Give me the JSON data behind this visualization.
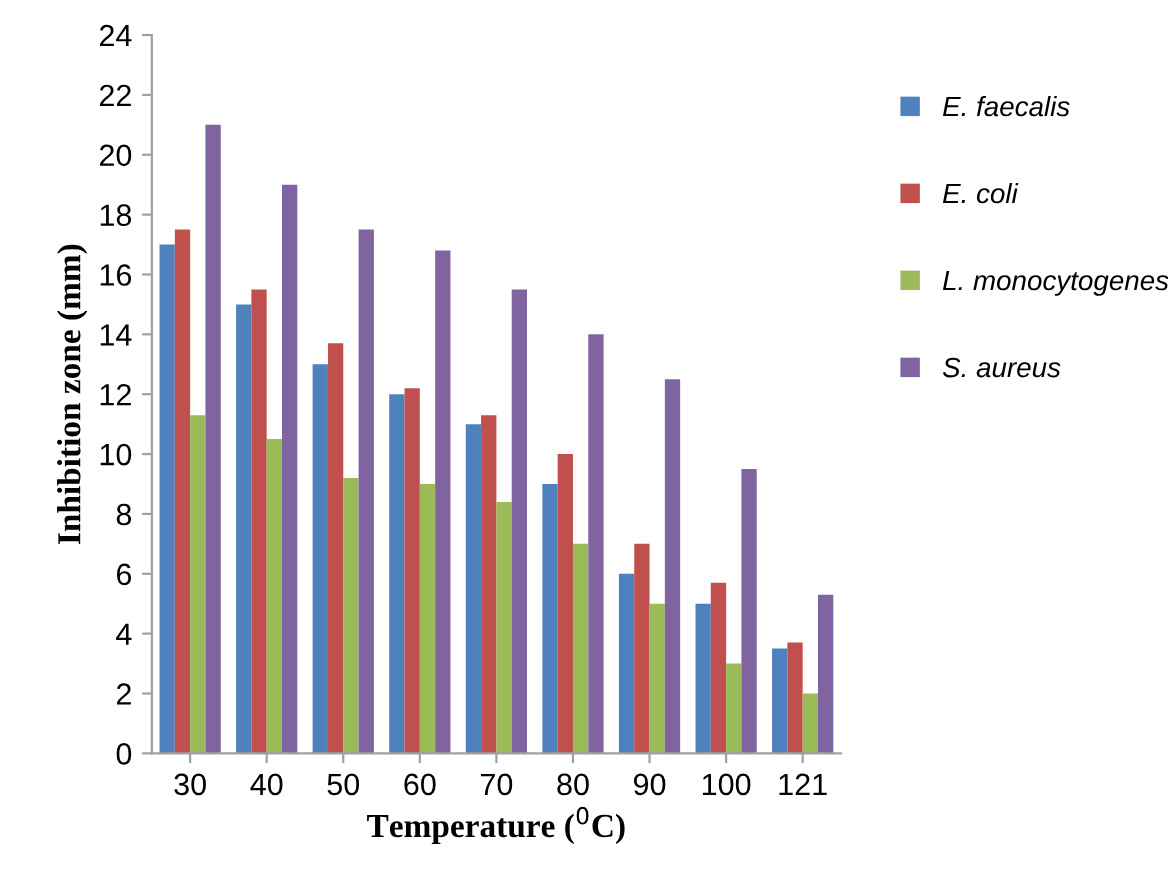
{
  "chart_data": {
    "type": "bar",
    "xlabel": "Temperature ($^{0}$C)",
    "ylabel": "Inhibition zone (mm)",
    "categories": [
      "30",
      "40",
      "50",
      "60",
      "70",
      "80",
      "90",
      "100",
      "121"
    ],
    "series": [
      {
        "name": "E. faecalis",
        "color": "#4f81bd",
        "values": [
          17,
          15,
          13,
          12,
          11,
          9,
          6,
          5,
          3.5
        ]
      },
      {
        "name": "E. coli",
        "color": "#c0504d",
        "values": [
          17.5,
          15.5,
          13.7,
          12.2,
          11.3,
          10,
          7,
          5.7,
          3.7
        ]
      },
      {
        "name": "L. monocytogenes",
        "color": "#9bbb59",
        "values": [
          11.3,
          10.5,
          9.2,
          9,
          8.4,
          7,
          5,
          3,
          2
        ]
      },
      {
        "name": "S. aureus",
        "color": "#8064a2",
        "values": [
          21,
          19,
          17.5,
          16.8,
          15.5,
          14,
          12.5,
          9.5,
          5.3
        ]
      }
    ],
    "ylim": [
      0,
      24
    ],
    "yticks": [
      0,
      2,
      4,
      6,
      8,
      10,
      12,
      14,
      16,
      18,
      20,
      22,
      24
    ],
    "grid": false,
    "legend": "right"
  }
}
